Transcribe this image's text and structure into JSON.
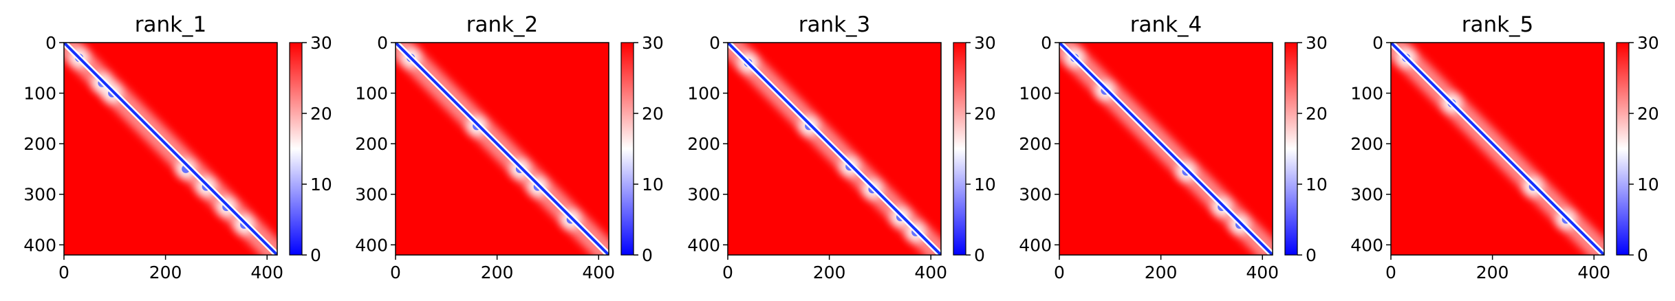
{
  "colors": {
    "low": "#0000ff",
    "mid": "#ffffff",
    "high": "#ff0000",
    "diagonal": "#1530ff"
  },
  "chart_data": [
    {
      "type": "heatmap",
      "title": "rank_1",
      "xlim": [
        0,
        420
      ],
      "ylim": [
        420,
        0
      ],
      "xticks": [
        "0",
        "200",
        "400"
      ],
      "yticks": [
        "0",
        "100",
        "200",
        "300",
        "400"
      ],
      "colorbar": {
        "min": 0,
        "max": 30,
        "ticks": [
          "0",
          "10",
          "20",
          "30"
        ],
        "colormap": "bwr"
      },
      "low_distance_regions": [
        [
          30,
          30
        ],
        [
          75,
          80
        ],
        [
          95,
          100
        ],
        [
          240,
          250
        ],
        [
          280,
          285
        ],
        [
          320,
          325
        ],
        [
          355,
          360
        ]
      ]
    },
    {
      "type": "heatmap",
      "title": "rank_2",
      "xlim": [
        0,
        420
      ],
      "ylim": [
        420,
        0
      ],
      "xticks": [
        "0",
        "200",
        "400"
      ],
      "yticks": [
        "0",
        "100",
        "200",
        "300",
        "400"
      ],
      "colorbar": {
        "min": 0,
        "max": 30,
        "ticks": [
          "0",
          "10",
          "20",
          "30"
        ],
        "colormap": "bwr"
      },
      "low_distance_regions": [
        [
          30,
          30
        ],
        [
          160,
          165
        ],
        [
          245,
          250
        ],
        [
          280,
          285
        ],
        [
          345,
          350
        ]
      ]
    },
    {
      "type": "heatmap",
      "title": "rank_3",
      "xlim": [
        0,
        420
      ],
      "ylim": [
        420,
        0
      ],
      "xticks": [
        "0",
        "200",
        "400"
      ],
      "yticks": [
        "0",
        "100",
        "200",
        "300",
        "400"
      ],
      "colorbar": {
        "min": 0,
        "max": 30,
        "ticks": [
          "0",
          "10",
          "20",
          "30"
        ],
        "colormap": "bwr"
      },
      "low_distance_regions": [
        [
          40,
          40
        ],
        [
          160,
          165
        ],
        [
          240,
          245
        ],
        [
          285,
          290
        ],
        [
          340,
          345
        ],
        [
          370,
          375
        ]
      ]
    },
    {
      "type": "heatmap",
      "title": "rank_4",
      "xlim": [
        0,
        420
      ],
      "ylim": [
        420,
        0
      ],
      "xticks": [
        "0",
        "200",
        "400"
      ],
      "yticks": [
        "0",
        "100",
        "200",
        "300",
        "400"
      ],
      "colorbar": {
        "min": 0,
        "max": 30,
        "ticks": [
          "0",
          "10",
          "20",
          "30"
        ],
        "colormap": "bwr"
      },
      "low_distance_regions": [
        [
          30,
          30
        ],
        [
          90,
          95
        ],
        [
          250,
          255
        ],
        [
          320,
          325
        ],
        [
          355,
          360
        ]
      ]
    },
    {
      "type": "heatmap",
      "title": "rank_5",
      "xlim": [
        0,
        420
      ],
      "ylim": [
        420,
        0
      ],
      "xticks": [
        "0",
        "200",
        "400"
      ],
      "yticks": [
        "0",
        "100",
        "200",
        "300",
        "400"
      ],
      "colorbar": {
        "min": 0,
        "max": 30,
        "ticks": [
          "0",
          "10",
          "20",
          "30"
        ],
        "colormap": "bwr"
      },
      "low_distance_regions": [
        [
          30,
          30
        ],
        [
          120,
          120
        ],
        [
          280,
          285
        ],
        [
          345,
          350
        ]
      ]
    }
  ]
}
